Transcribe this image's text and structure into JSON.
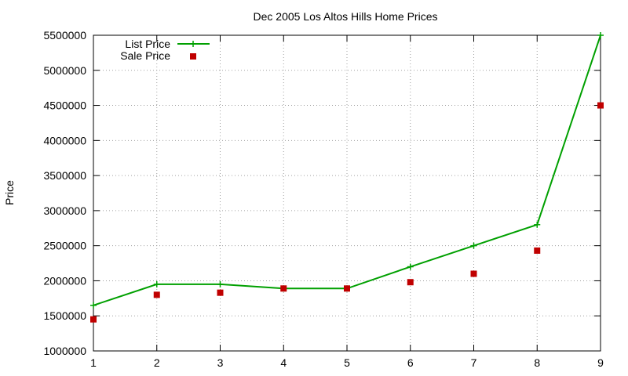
{
  "chart_data": {
    "type": "line",
    "title": "Dec 2005 Los Altos Hills Home Prices",
    "xlabel": "",
    "ylabel": "Price",
    "xlim": [
      1,
      9
    ],
    "ylim": [
      1000000,
      5500000
    ],
    "x_ticks": [
      "1",
      "2",
      "3",
      "4",
      "5",
      "6",
      "7",
      "8",
      "9"
    ],
    "y_ticks": [
      "1000000",
      "1500000",
      "2000000",
      "2500000",
      "3000000",
      "3500000",
      "4000000",
      "4500000",
      "5000000",
      "5500000"
    ],
    "grid": true,
    "legend_position": "top-left",
    "x": [
      1,
      2,
      3,
      4,
      5,
      6,
      7,
      8,
      9
    ],
    "series": [
      {
        "name": "List Price",
        "style": "line-with-plus-markers",
        "color": "#00a000",
        "values": [
          1650000,
          1950000,
          1950000,
          1890000,
          1890000,
          2200000,
          2500000,
          2800000,
          5500000
        ]
      },
      {
        "name": "Sale Price",
        "style": "square-points",
        "color": "#c00000",
        "values": [
          1450000,
          1800000,
          1830000,
          1890000,
          1890000,
          1980000,
          2100000,
          2430000,
          4500000
        ]
      }
    ]
  }
}
